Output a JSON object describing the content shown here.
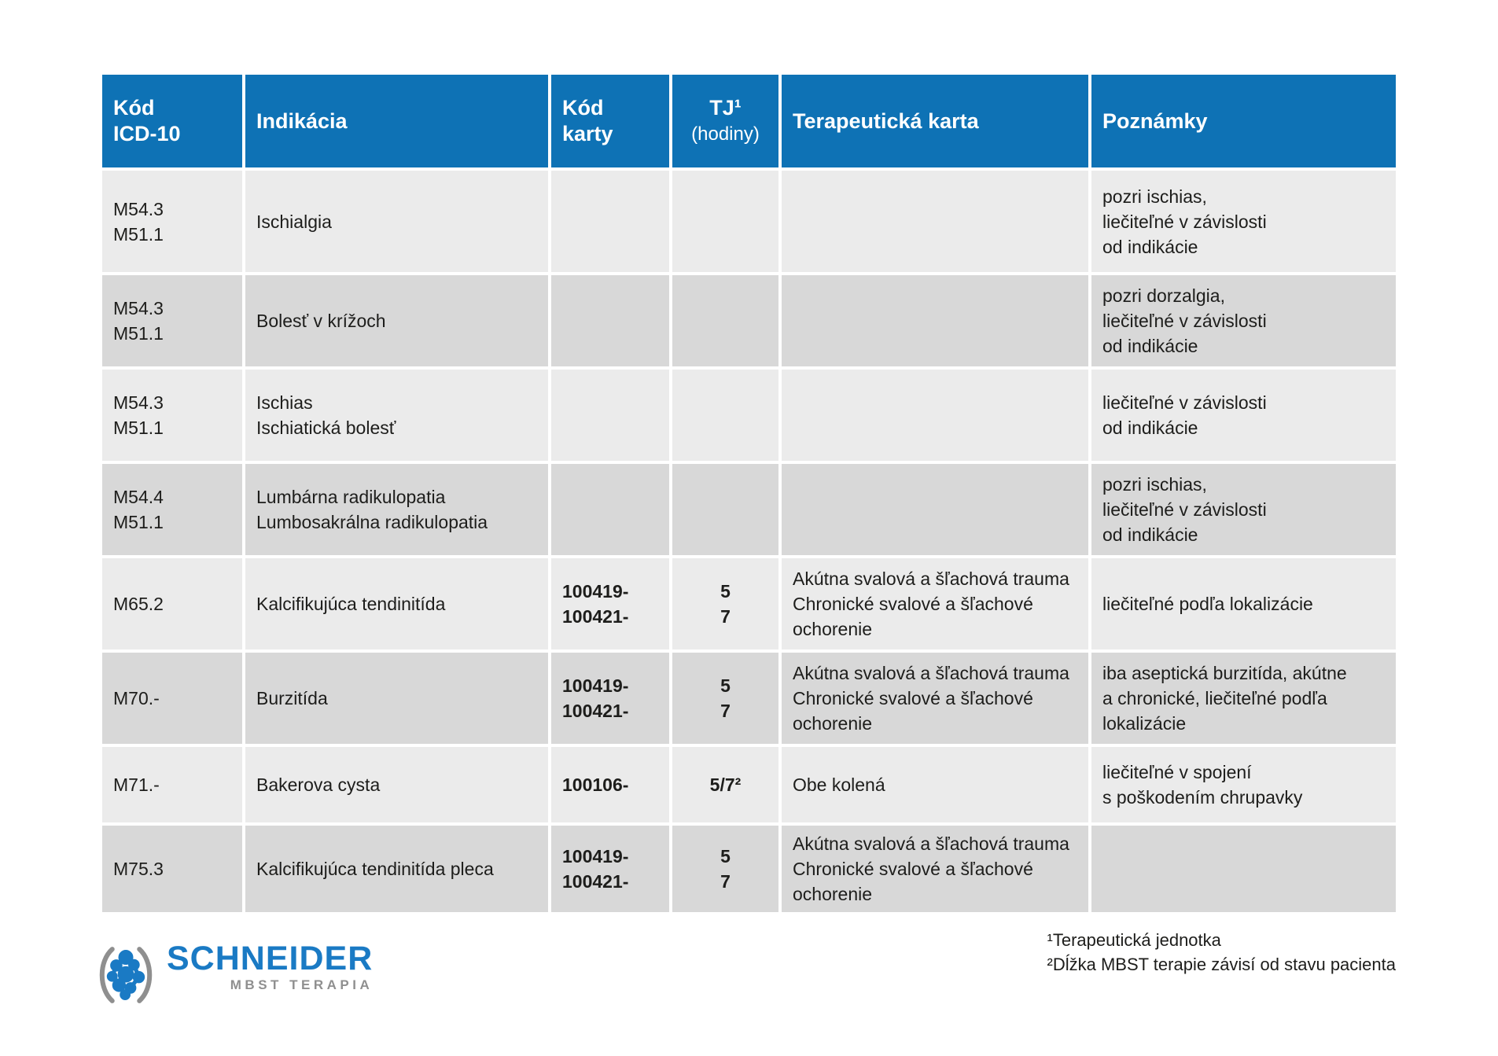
{
  "table": {
    "columns": [
      {
        "key": "icd",
        "label_lines": [
          "Kód",
          "ICD-10"
        ]
      },
      {
        "key": "indication",
        "label_lines": [
          "Indikácia"
        ]
      },
      {
        "key": "card_code",
        "label_lines": [
          "Kód karty"
        ]
      },
      {
        "key": "tj",
        "label_lines": [
          "TJ¹",
          "(hodiny)"
        ]
      },
      {
        "key": "therapy_card",
        "label_lines": [
          "Terapeutická karta"
        ]
      },
      {
        "key": "notes",
        "label_lines": [
          "Poznámky"
        ]
      }
    ],
    "rows": [
      {
        "icd": [
          "M54.3",
          "M51.1"
        ],
        "indication": [
          "Ischialgia"
        ],
        "card_code": [],
        "tj": [],
        "therapy_card": [],
        "notes": [
          "pozri ischias,",
          "liečiteľné v závislosti",
          "od indikácie"
        ]
      },
      {
        "icd": [
          "M54.3",
          "M51.1"
        ],
        "indication": [
          "Bolesť v krížoch"
        ],
        "card_code": [],
        "tj": [],
        "therapy_card": [],
        "notes": [
          "pozri dorzalgia,",
          "liečiteľné v závislosti",
          "od indikácie"
        ]
      },
      {
        "icd": [
          "M54.3",
          "M51.1"
        ],
        "indication": [
          "Ischias",
          "Ischiatická bolesť"
        ],
        "card_code": [],
        "tj": [],
        "therapy_card": [],
        "notes": [
          "liečiteľné v závislosti",
          "od indikácie"
        ]
      },
      {
        "icd": [
          "M54.4",
          "M51.1"
        ],
        "indication": [
          "Lumbárna radikulopatia",
          "Lumbosakrálna radikulopatia"
        ],
        "card_code": [],
        "tj": [],
        "therapy_card": [],
        "notes": [
          "pozri ischias,",
          "liečiteľné v závislosti",
          "od indikácie"
        ]
      },
      {
        "icd": [
          "M65.2"
        ],
        "indication": [
          "Kalcifikujúca tendinitída"
        ],
        "card_code": [
          "100419-",
          "100421-"
        ],
        "tj": [
          "5",
          "7"
        ],
        "therapy_card": [
          "Akútna svalová a šľachová trauma",
          "Chronické svalové a šľachové",
          "ochorenie"
        ],
        "notes": [
          "liečiteľné podľa lokalizácie"
        ]
      },
      {
        "icd": [
          "M70.-"
        ],
        "indication": [
          "Burzitída"
        ],
        "card_code": [
          "100419-",
          "100421-"
        ],
        "tj": [
          "5",
          "7"
        ],
        "therapy_card": [
          "Akútna svalová a šľachová trauma",
          "Chronické svalové a šľachové",
          "ochorenie"
        ],
        "notes": [
          "iba aseptická burzitída, akútne",
          "a chronické, liečiteľné podľa",
          "lokalizácie"
        ]
      },
      {
        "icd": [
          "M71.-"
        ],
        "indication": [
          "Bakerova cysta"
        ],
        "card_code": [
          "100106-"
        ],
        "tj": [
          "5/7²"
        ],
        "therapy_card": [
          "Obe kolená"
        ],
        "notes": [
          "liečiteľné v spojení",
          "s poškodením chrupavky"
        ]
      },
      {
        "icd": [
          "M75.3"
        ],
        "indication": [
          "Kalcifikujúca tendinitída pleca"
        ],
        "card_code": [
          "100419-",
          "100421-"
        ],
        "tj": [
          "5",
          "7"
        ],
        "therapy_card": [
          "Akútna svalová a šľachová trauma",
          "Chronické svalové a šľachové",
          "ochorenie"
        ],
        "notes": []
      }
    ]
  },
  "footnotes": [
    "¹Terapeutická jednotka",
    "²Dĺžka MBST terapie závisí od stavu pacienta"
  ],
  "logo": {
    "brand": "SCHNEIDER",
    "subtitle": "MBST TERAPIA"
  },
  "colors": {
    "header_blue": "#0e72b5",
    "row_light": "#ebebeb",
    "row_dark": "#d8d8d8",
    "text": "#1d1d1b",
    "logo_blue": "#1a7ac4",
    "logo_gray": "#8f8f8f"
  }
}
